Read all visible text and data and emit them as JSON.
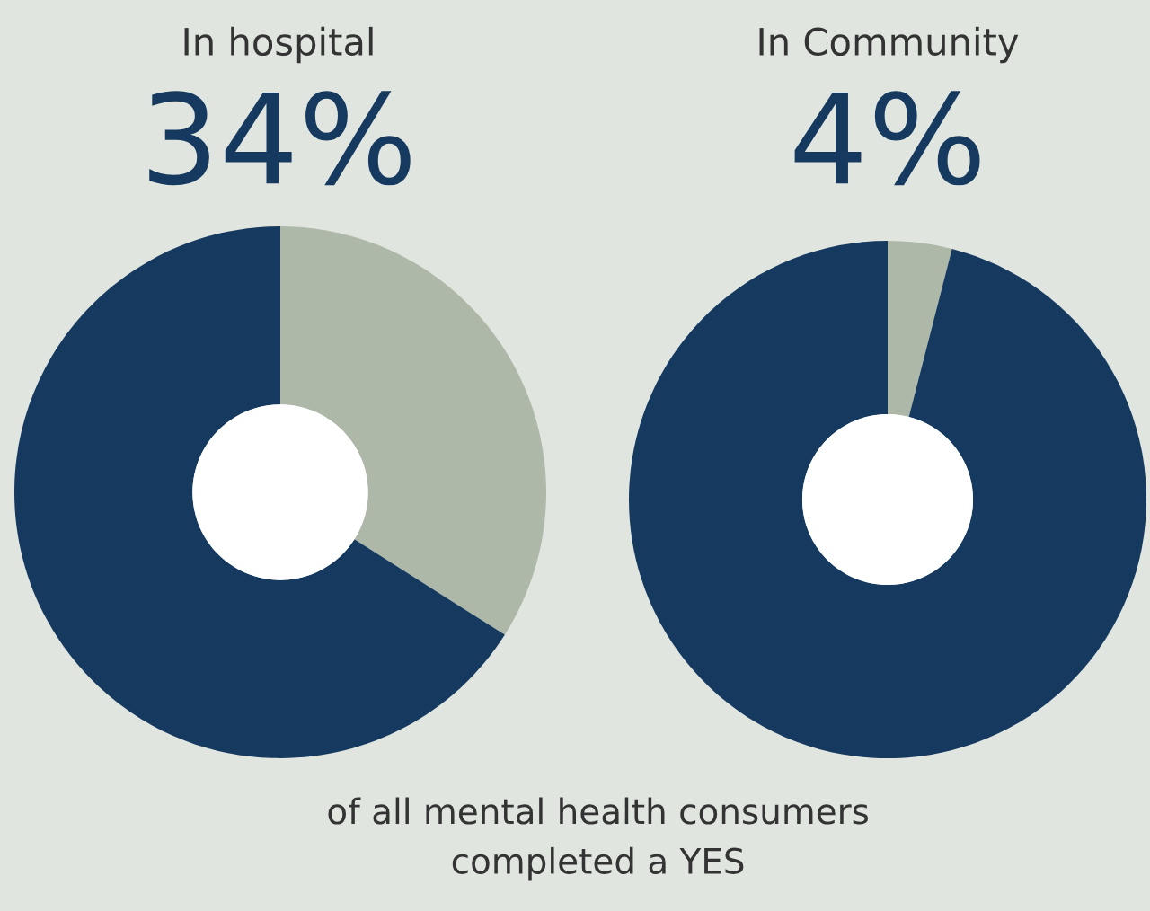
{
  "chart_data": [
    {
      "type": "donut",
      "title": "In hospital",
      "subtitle": "34%",
      "categories": [
        null,
        null
      ],
      "values": [
        34,
        66
      ],
      "colors": [
        "#aeb8a8",
        "#163a5f"
      ],
      "annotations": [
        "of all mental health consumers\ncompleted a YES"
      ]
    },
    {
      "type": "donut",
      "title": "In Community",
      "subtitle": "4%",
      "categories": [
        null,
        null
      ],
      "values": [
        4,
        96
      ],
      "colors": [
        "#aeb8a8",
        "#163a5f"
      ]
    }
  ]
}
